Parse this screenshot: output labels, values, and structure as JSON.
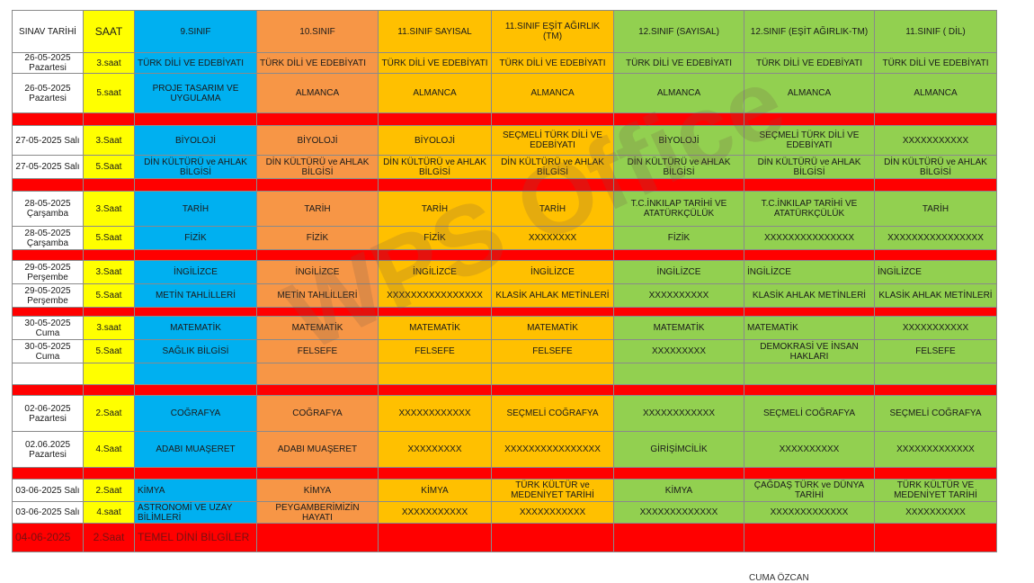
{
  "header": [
    "SINAV TARİHİ",
    "SAAT",
    "9.SINIF",
    "10.SINIF",
    "11.SINIF SAYISAL",
    "11.SINIF EŞİT AĞIRLIK (TM)",
    "12.SINIF (SAYISAL)",
    "12.SINIF (EŞİT AĞIRLIK-TM)",
    "11.SINIF ( DİL)"
  ],
  "rows": [
    {
      "type": "exam",
      "cells": [
        "26-05-2025 Pazartesi",
        "3.saat",
        "TÜRK DİLİ VE EDEBİYATI",
        "TÜRK DİLİ VE EDEBİYATI",
        "TÜRK DİLİ VE EDEBİYATI",
        "TÜRK DİLİ VE EDEBİYATI",
        "TÜRK DİLİ VE EDEBİYATI",
        "TÜRK DİLİ VE EDEBİYATI",
        "TÜRK DİLİ VE EDEBİYATI"
      ]
    },
    {
      "type": "exam",
      "cells": [
        "26-05-2025 Pazartesi",
        "5.saat",
        "PROJE TASARIM VE UYGULAMA",
        "ALMANCA",
        "ALMANCA",
        "ALMANCA",
        "ALMANCA",
        "ALMANCA",
        "ALMANCA"
      ]
    },
    {
      "type": "sep"
    },
    {
      "type": "exam",
      "cells": [
        "27-05-2025 Salı",
        "3.Saat",
        "BİYOLOJİ",
        "BİYOLOJİ",
        "BİYOLOJİ",
        "SEÇMELİ TÜRK DİLİ VE EDEBİYATI",
        "BİYOLOJİ",
        "SEÇMELİ TÜRK DİLİ VE EDEBİYATI",
        "XXXXXXXXXXX"
      ]
    },
    {
      "type": "exam",
      "cells": [
        "27-05-2025 Salı",
        "5.Saat",
        "DİN KÜLTÜRÜ ve AHLAK BİLGİSİ",
        "DİN KÜLTÜRÜ ve AHLAK BİLGİSİ",
        "DİN KÜLTÜRÜ ve AHLAK BİLGİSİ",
        "DİN KÜLTÜRÜ ve AHLAK BİLGİSİ",
        "DİN KÜLTÜRÜ ve AHLAK BİLGİSİ",
        "DİN KÜLTÜRÜ ve AHLAK BİLGİSİ",
        "DİN KÜLTÜRÜ ve AHLAK BİLGİSİ"
      ]
    },
    {
      "type": "sep"
    },
    {
      "type": "exam",
      "cells": [
        "28-05-2025 Çarşamba",
        "3.Saat",
        "TARİH",
        "TARİH",
        "TARİH",
        "TARİH",
        "T.C.İNKILAP TARİHİ VE ATATÜRKÇÜLÜK",
        "T.C.İNKILAP TARİHİ VE ATATÜRKÇÜLÜK",
        "TARİH"
      ]
    },
    {
      "type": "exam",
      "cells": [
        "28-05-2025 Çarşamba",
        "5.Saat",
        "FİZİK",
        "FİZİK",
        "FİZİK",
        "XXXXXXXX",
        "FİZİK",
        "XXXXXXXXXXXXXXX",
        "XXXXXXXXXXXXXXXX"
      ]
    },
    {
      "type": "sep"
    },
    {
      "type": "exam",
      "cells": [
        "29-05-2025 Perşembe",
        "3.Saat",
        "İNGİLİZCE",
        "İNGİLİZCE",
        "İNGİLİZCE",
        "İNGİLİZCE",
        "İNGİLİZCE",
        "İNGİLİZCE",
        "İNGİLİZCE"
      ]
    },
    {
      "type": "exam",
      "cells": [
        "29-05-2025 Perşembe",
        "5.Saat",
        "METİN TAHLİLLERİ",
        "METİN TAHLİLLERİ",
        "XXXXXXXXXXXXXXXX",
        "KLASİK AHLAK METİNLERİ",
        "XXXXXXXXXX",
        "KLASİK AHLAK METİNLERİ",
        "KLASİK AHLAK METİNLERİ"
      ]
    },
    {
      "type": "sep"
    },
    {
      "type": "exam",
      "cells": [
        "30-05-2025 Cuma",
        "3.saat",
        "MATEMATİK",
        "MATEMATİK",
        "MATEMATİK",
        "MATEMATİK",
        "MATEMATİK",
        "MATEMATİK",
        "XXXXXXXXXXX"
      ]
    },
    {
      "type": "exam",
      "cells": [
        "30-05-2025 Cuma",
        "5.Saat",
        "SAĞLIK BİLGİSİ",
        "FELSEFE",
        "FELSEFE",
        "FELSEFE",
        "XXXXXXXXX",
        "DEMOKRASİ VE İNSAN HAKLARI",
        "FELSEFE"
      ]
    },
    {
      "type": "empty"
    },
    {
      "type": "sep"
    },
    {
      "type": "exam",
      "cells": [
        "02-06-2025 Pazartesi",
        "2.Saat",
        "COĞRAFYA",
        "COĞRAFYA",
        "XXXXXXXXXXXX",
        "SEÇMELİ COĞRAFYA",
        "XXXXXXXXXXXX",
        "SEÇMELİ COĞRAFYA",
        "SEÇMELİ COĞRAFYA"
      ]
    },
    {
      "type": "exam",
      "cells": [
        "02.06.2025 Pazartesi",
        "4.Saat",
        "ADABI MUAŞERET",
        "ADABI MUAŞERET",
        "XXXXXXXXX",
        "XXXXXXXXXXXXXXXX",
        "GİRİŞİMCİLİK",
        "XXXXXXXXXX",
        "XXXXXXXXXXXXX"
      ]
    },
    {
      "type": "sep"
    },
    {
      "type": "exam",
      "cells": [
        "03-06-2025 Salı",
        "2.Saat",
        "KİMYA",
        "KİMYA",
        "KİMYA",
        "TÜRK KÜLTÜR ve MEDENİYET TARİHİ",
        "KİMYA",
        "ÇAĞDAŞ TÜRK ve DÜNYA TARİHİ",
        "TÜRK KÜLTÜR VE MEDENİYET TARİHİ"
      ]
    },
    {
      "type": "exam",
      "cells": [
        "03-06-2025 Salı",
        "4.saat",
        "ASTRONOMİ VE UZAY BİLİMLERİ",
        "PEYGAMBERİMİZİN HAYATI",
        "XXXXXXXXXXX",
        "XXXXXXXXXXX",
        "XXXXXXXXXXXXX",
        "XXXXXXXXXXXXX",
        "XXXXXXXXXX"
      ]
    },
    {
      "type": "last",
      "cells": [
        "04-06-2025",
        "2.Saat",
        "TEMEL DİNİ BİLGİLER",
        "",
        "",
        "",
        "",
        "",
        ""
      ]
    }
  ],
  "watermark": "WPS Office",
  "signature": "CUMA ÖZCAN",
  "colors": {
    "white": "#ffffff",
    "yellow": "#ffff00",
    "blue": "#00b0f0",
    "orange": "#f79646",
    "gold": "#ffc000",
    "green": "#92d050",
    "red": "#ff0000"
  }
}
